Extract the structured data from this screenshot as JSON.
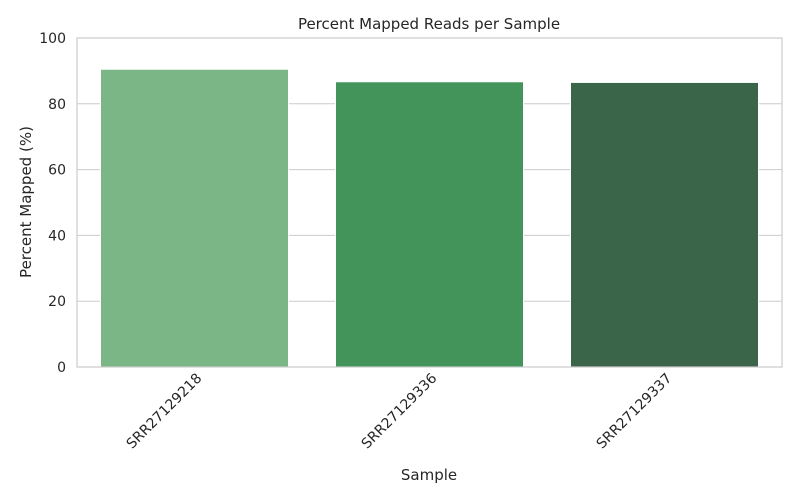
{
  "chart_data": {
    "type": "bar",
    "title": "Percent Mapped Reads per Sample",
    "xlabel": "Sample",
    "ylabel": "Percent Mapped (%)",
    "categories": [
      "SRR27129218",
      "SRR27129336",
      "SRR27129337"
    ],
    "values": [
      90.5,
      86.7,
      86.5
    ],
    "ylim": [
      0,
      100
    ],
    "yticks": [
      0,
      20,
      40,
      60,
      80,
      100
    ],
    "ytick_labels": [
      "0",
      "20",
      "40",
      "60",
      "80",
      "100"
    ],
    "grid": true,
    "colors": [
      "#7bb686",
      "#43945a",
      "#3a6549"
    ]
  }
}
